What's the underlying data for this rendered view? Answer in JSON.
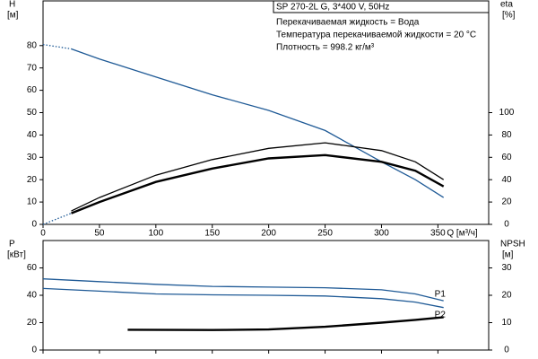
{
  "chart_data": [
    {
      "type": "line",
      "title": "SP 270-2L G, 3*400 V, 50Hz",
      "annotations": [
        "Перекачиваемая жидкость = Вода",
        "Температура перекачиваемой жидкости = 20 °C",
        "Плотность = 998.2 кг/м³"
      ],
      "xlabel": "Q [м³/ч]",
      "ylabel": "H",
      "yunit": "[м]",
      "y2label": "eta",
      "y2unit": "[%]",
      "xlim": [
        0,
        395
      ],
      "xticks": [
        0,
        50,
        100,
        150,
        200,
        250,
        300,
        350
      ],
      "ylim": [
        0,
        100
      ],
      "yticks": [
        0,
        10,
        20,
        30,
        40,
        50,
        60,
        70,
        80
      ],
      "y2lim": [
        0,
        200
      ],
      "y2ticks": [
        0,
        20,
        40,
        60,
        80,
        100
      ],
      "series": [
        {
          "color": "#1f5a96",
          "dotted": true,
          "x": [
            0,
            25
          ],
          "values": [
            80.5,
            78.5
          ]
        },
        {
          "color": "#1f5a96",
          "x": [
            25,
            50,
            100,
            150,
            200,
            250,
            300,
            330,
            355
          ],
          "values": [
            78.5,
            74,
            66,
            58,
            51,
            42,
            28,
            20,
            12
          ]
        },
        {
          "color": "#1f5a96",
          "dotted": true,
          "axis": "y2",
          "x": [
            0,
            25
          ],
          "values": [
            0,
            10
          ]
        },
        {
          "color": "#000000",
          "axis": "y2",
          "x": [
            25,
            50,
            100,
            150,
            200,
            250,
            300,
            330,
            355
          ],
          "values": [
            12,
            24,
            44,
            58,
            68,
            73,
            66,
            56,
            40
          ]
        },
        {
          "color": "#000000",
          "axis": "y2",
          "thick": true,
          "x": [
            25,
            50,
            100,
            150,
            200,
            250,
            300,
            330,
            355
          ],
          "values": [
            10,
            20,
            38,
            50,
            59,
            62,
            56,
            48,
            34
          ]
        }
      ]
    },
    {
      "type": "line",
      "ylabel": "P",
      "yunit": "[кВт]",
      "y2label": "NPSH",
      "y2unit": "[м]",
      "xlim": [
        0,
        395
      ],
      "xticks": [
        0,
        50,
        100,
        150,
        200,
        250,
        300,
        350
      ],
      "ylim": [
        0,
        80
      ],
      "yticks": [
        0,
        20,
        40,
        60
      ],
      "y2lim": [
        0,
        40
      ],
      "y2ticks": [
        0,
        10,
        20,
        30
      ],
      "series": [
        {
          "name": "P1",
          "color": "#1f5a96",
          "x": [
            0,
            50,
            100,
            150,
            200,
            250,
            300,
            330,
            355
          ],
          "values": [
            52,
            50,
            48,
            46.5,
            46,
            45.5,
            44,
            41,
            36
          ]
        },
        {
          "name": "P2",
          "color": "#1f5a96",
          "x": [
            0,
            50,
            100,
            150,
            200,
            250,
            300,
            330,
            355
          ],
          "values": [
            45,
            43,
            41,
            40.3,
            40,
            39.5,
            37.5,
            35,
            31
          ]
        },
        {
          "color": "#000000",
          "axis": "y2",
          "thick": true,
          "x": [
            75,
            150,
            200,
            250,
            300,
            330,
            355
          ],
          "values": [
            7.4,
            7.3,
            7.5,
            8.5,
            10,
            11,
            12
          ]
        }
      ]
    }
  ]
}
